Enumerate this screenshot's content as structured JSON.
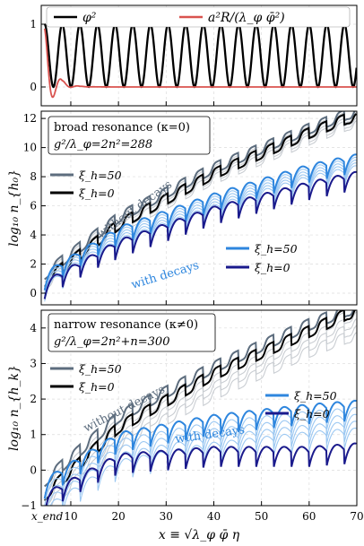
{
  "chart_data": [
    {
      "type": "line",
      "panel": "top",
      "xlim": [
        3.8,
        70
      ],
      "ylim": [
        -0.3,
        1.3
      ],
      "yticks": [
        "0",
        "1"
      ],
      "legend": [
        {
          "label": "φ²",
          "color": "#000000"
        },
        {
          "label": "a²R/(λ_φ φ̄²)",
          "color": "#d9534f"
        }
      ],
      "series": [
        {
          "name": "φ²",
          "color": "#000000",
          "period": 3.7,
          "min": 0,
          "max": 1
        },
        {
          "name": "a²R/(λ_φ φ̄²)",
          "color": "#d9534f",
          "start_value": 0.93,
          "decays_to": 0
        }
      ]
    },
    {
      "type": "line",
      "panel": "middle",
      "box_title": "broad resonance (κ=0)",
      "box_subtitle": "g²/λ_φ=2n²=288",
      "ylabel": "log₁₀ n_{h₀}",
      "xlim": [
        3.8,
        70
      ],
      "ylim": [
        -0.8,
        12.5
      ],
      "yticks": [
        "0",
        "2",
        "4",
        "6",
        "8",
        "10",
        "12"
      ],
      "legend": [
        {
          "label": "ξ_h=50",
          "color": "#5d6d7e"
        },
        {
          "label": "ξ_h=0",
          "color": "#000000"
        }
      ],
      "legend2": [
        {
          "label": "ξ_h=50",
          "color": "#2e86de"
        },
        {
          "label": "ξ_h=0",
          "color": "#1a1a8c"
        }
      ],
      "annotations": [
        "without decays",
        "with decays"
      ],
      "series": [
        {
          "group": "without decays",
          "xi_h": 50,
          "color": "#5d6d7e",
          "points": [
            [
              4.5,
              1.3
            ],
            [
              20,
              5.2
            ],
            [
              40,
              8.6
            ],
            [
              60,
              11.3
            ],
            [
              68,
              12.3
            ]
          ]
        },
        {
          "group": "without decays",
          "xi_h": 0,
          "color": "#000000",
          "points": [
            [
              4.5,
              0.8
            ],
            [
              20,
              4.7
            ],
            [
              40,
              8.2
            ],
            [
              60,
              11
            ],
            [
              68,
              12
            ]
          ]
        },
        {
          "group": "with decays",
          "xi_h": 50,
          "color": "#2e86de",
          "points": [
            [
              4.5,
              1.1
            ],
            [
              20,
              4.2
            ],
            [
              40,
              6.5
            ],
            [
              60,
              8.5
            ],
            [
              70,
              9.2
            ]
          ]
        },
        {
          "group": "with decays",
          "xi_h": 0,
          "color": "#1a1a8c",
          "points": [
            [
              4.5,
              0.5
            ],
            [
              20,
              3.3
            ],
            [
              40,
              5.6
            ],
            [
              60,
              7.3
            ],
            [
              70,
              8.0
            ]
          ]
        }
      ]
    },
    {
      "type": "line",
      "panel": "bottom",
      "box_title": "narrow resonance (κ≠0)",
      "box_subtitle": "g²/λ_φ=2n²+n=300",
      "ylabel": "log₁₀ n_{h_k}",
      "xlabel": "x ≡ √λ_φ φ̄ η",
      "xlim": [
        3.8,
        70
      ],
      "ylim": [
        -1,
        4.5
      ],
      "yticks": [
        "−1",
        "0",
        "1",
        "2",
        "3",
        "4"
      ],
      "xticks": [
        "x_end",
        "10",
        "20",
        "30",
        "40",
        "50",
        "60",
        "70"
      ],
      "legend": [
        {
          "label": "ξ_h=50",
          "color": "#5d6d7e"
        },
        {
          "label": "ξ_h=0",
          "color": "#000000"
        }
      ],
      "legend2": [
        {
          "label": "ξ_h=50",
          "color": "#2e86de"
        },
        {
          "label": "ξ_h=0",
          "color": "#1a1a8c"
        }
      ],
      "annotations": [
        "without decays",
        "with decays"
      ],
      "series": [
        {
          "group": "without decays",
          "xi_h": 50,
          "color": "#5d6d7e",
          "points": [
            [
              4.5,
              -0.3
            ],
            [
              20,
              1.5
            ],
            [
              40,
              2.9
            ],
            [
              60,
              4.1
            ],
            [
              68,
              4.5
            ]
          ]
        },
        {
          "group": "without decays",
          "xi_h": 0,
          "color": "#000000",
          "points": [
            [
              4.5,
              -0.7
            ],
            [
              20,
              1.2
            ],
            [
              40,
              2.7
            ],
            [
              60,
              3.9
            ],
            [
              68,
              4.4
            ]
          ]
        },
        {
          "group": "with decays",
          "xi_h": 50,
          "color": "#2e86de",
          "points": [
            [
              4.5,
              -0.4
            ],
            [
              20,
              0.9
            ],
            [
              40,
              1.4
            ],
            [
              60,
              1.7
            ],
            [
              70,
              1.8
            ]
          ]
        },
        {
          "group": "with decays",
          "xi_h": 0,
          "color": "#1a1a8c",
          "points": [
            [
              4.5,
              -0.8
            ],
            [
              20,
              0.3
            ],
            [
              40,
              0.5
            ],
            [
              60,
              0.5
            ],
            [
              70,
              0.6
            ]
          ]
        }
      ]
    }
  ]
}
